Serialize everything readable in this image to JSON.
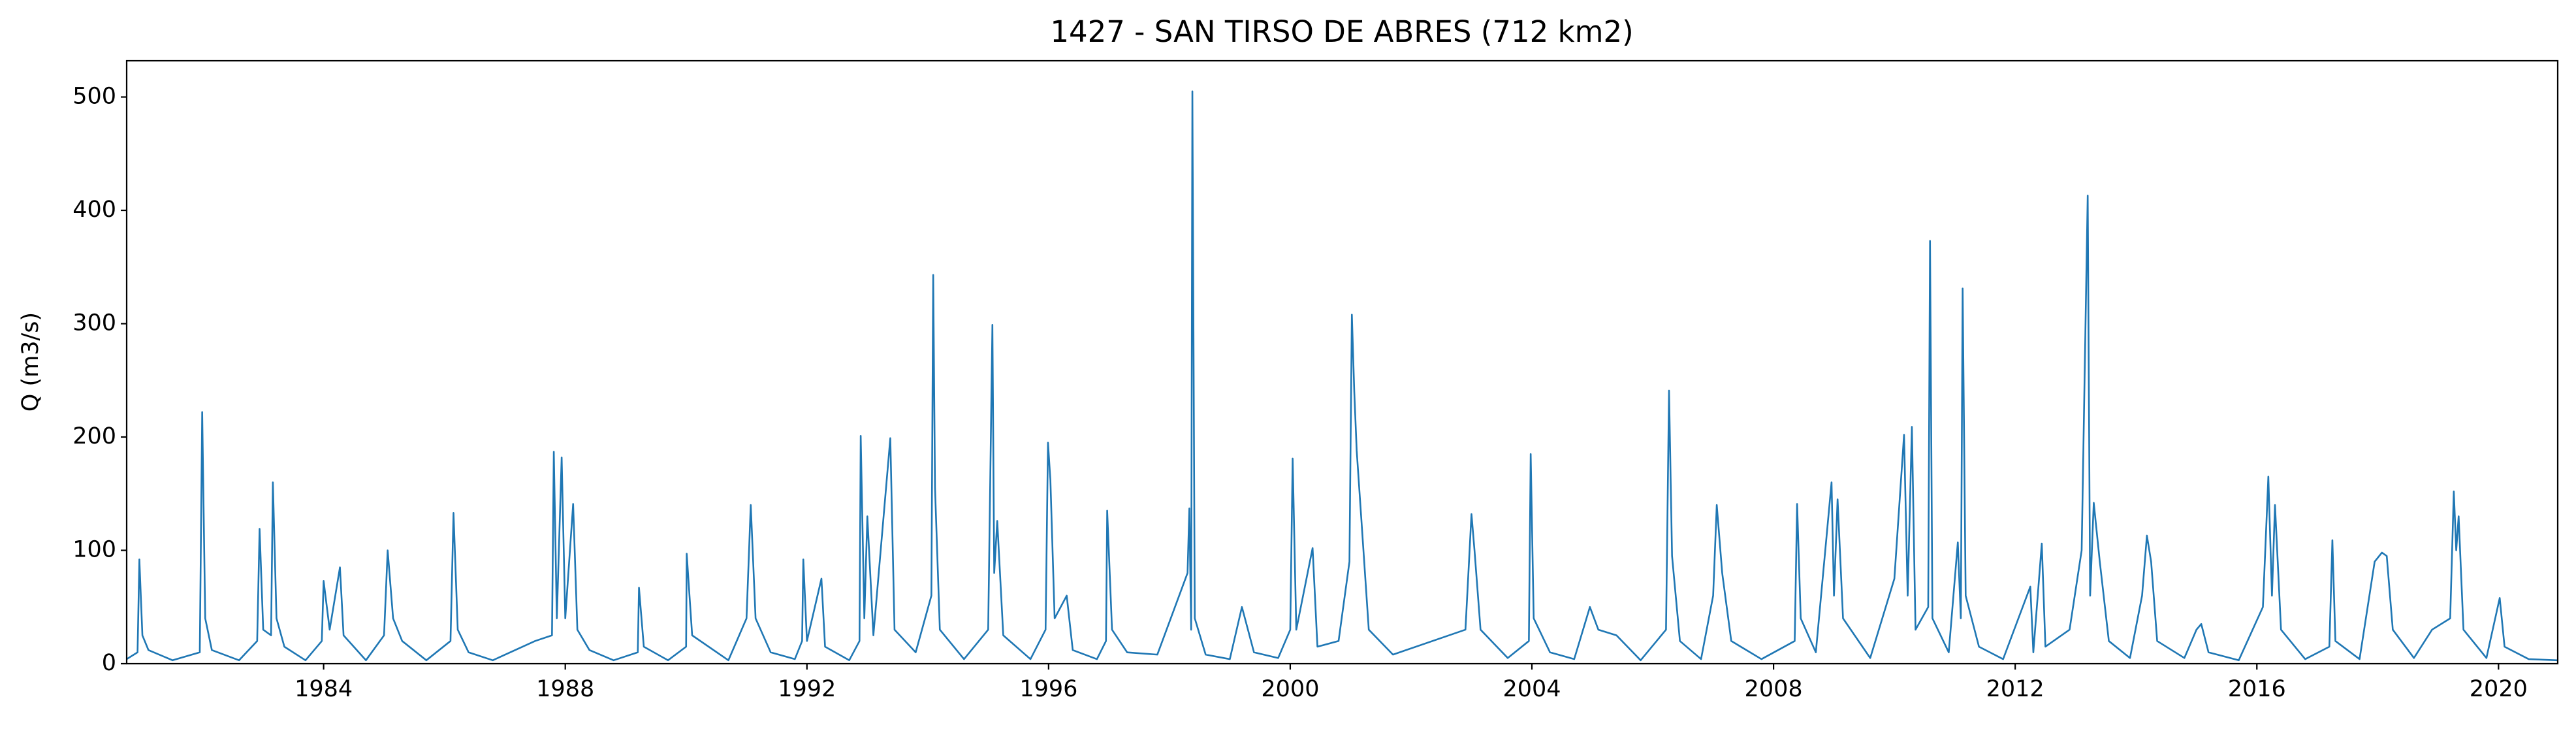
{
  "chart_data": {
    "type": "line",
    "title": "1427 - SAN TIRSO DE ABRES (712 km2)",
    "y_label": "Q (m3/s)",
    "color": "#1f77b4",
    "xlim": [
      1980.74,
      2020.98
    ],
    "xticks": [
      1984,
      1988,
      1992,
      1996,
      2000,
      2004,
      2008,
      2012,
      2016,
      2020
    ],
    "ylim": [
      0,
      532
    ],
    "yticks": [
      0,
      100,
      200,
      300,
      400,
      500
    ],
    "grid": false,
    "x": [
      1980.74,
      1980.92,
      1980.95,
      1981.0,
      1981.1,
      1981.5,
      1981.95,
      1981.99,
      1982.04,
      1982.15,
      1982.6,
      1982.9,
      1982.94,
      1983.0,
      1983.13,
      1983.16,
      1983.22,
      1983.35,
      1983.7,
      1983.97,
      1984.0,
      1984.1,
      1984.27,
      1984.33,
      1984.7,
      1985.0,
      1985.06,
      1985.15,
      1985.3,
      1985.7,
      1986.1,
      1986.15,
      1986.22,
      1986.4,
      1986.8,
      1987.5,
      1987.78,
      1987.81,
      1987.86,
      1987.94,
      1988.0,
      1988.13,
      1988.2,
      1988.4,
      1988.8,
      1989.2,
      1989.22,
      1989.3,
      1989.7,
      1990.0,
      1990.01,
      1990.1,
      1990.7,
      1991.0,
      1991.07,
      1991.15,
      1991.4,
      1991.8,
      1991.92,
      1991.94,
      1992.0,
      1992.24,
      1992.3,
      1992.7,
      1992.87,
      1992.89,
      1992.95,
      1993.0,
      1993.1,
      1993.38,
      1993.45,
      1993.8,
      1994.06,
      1994.09,
      1994.12,
      1994.2,
      1994.6,
      1995.0,
      1995.07,
      1995.1,
      1995.15,
      1995.25,
      1995.7,
      1995.95,
      1995.99,
      1996.03,
      1996.1,
      1996.3,
      1996.4,
      1996.8,
      1996.95,
      1996.97,
      1997.05,
      1997.3,
      1997.8,
      1998.3,
      1998.33,
      1998.36,
      1998.38,
      1998.42,
      1998.6,
      1999.0,
      1999.2,
      1999.4,
      1999.8,
      2000.0,
      2000.04,
      2000.1,
      2000.37,
      2000.45,
      2000.8,
      2000.98,
      2001.02,
      2001.06,
      2001.1,
      2001.18,
      2001.3,
      2001.7,
      2002.9,
      2003.0,
      2003.05,
      2003.15,
      2003.6,
      2003.95,
      2003.98,
      2004.03,
      2004.3,
      2004.7,
      2004.96,
      2005.1,
      2005.4,
      2005.8,
      2006.22,
      2006.27,
      2006.32,
      2006.45,
      2006.8,
      2007.0,
      2007.06,
      2007.15,
      2007.3,
      2007.8,
      2008.35,
      2008.39,
      2008.45,
      2008.7,
      2008.96,
      2009.0,
      2009.06,
      2009.15,
      2009.6,
      2010.0,
      2010.16,
      2010.22,
      2010.29,
      2010.35,
      2010.56,
      2010.59,
      2010.63,
      2010.9,
      2011.05,
      2011.1,
      2011.13,
      2011.18,
      2011.4,
      2011.8,
      2012.25,
      2012.3,
      2012.44,
      2012.5,
      2012.9,
      2013.1,
      2013.2,
      2013.24,
      2013.3,
      2013.4,
      2013.55,
      2013.9,
      2014.1,
      2014.18,
      2014.25,
      2014.35,
      2014.8,
      2015.0,
      2015.08,
      2015.2,
      2015.7,
      2016.1,
      2016.19,
      2016.25,
      2016.3,
      2016.4,
      2016.8,
      2017.2,
      2017.25,
      2017.3,
      2017.7,
      2017.95,
      2018.07,
      2018.15,
      2018.25,
      2018.6,
      2018.9,
      2019.2,
      2019.26,
      2019.3,
      2019.34,
      2019.42,
      2019.8,
      2020.02,
      2020.1,
      2020.5,
      2020.98
    ],
    "values": [
      4,
      10,
      92,
      25,
      12,
      3,
      10,
      222,
      40,
      12,
      3,
      20,
      119,
      30,
      25,
      160,
      40,
      15,
      3,
      20,
      73,
      30,
      85,
      25,
      3,
      25,
      100,
      40,
      20,
      3,
      20,
      133,
      30,
      10,
      3,
      20,
      25,
      187,
      40,
      182,
      40,
      141,
      30,
      12,
      3,
      10,
      67,
      15,
      3,
      15,
      97,
      25,
      3,
      40,
      140,
      40,
      10,
      4,
      20,
      92,
      20,
      75,
      15,
      3,
      20,
      201,
      40,
      130,
      25,
      199,
      30,
      10,
      60,
      343,
      155,
      30,
      4,
      30,
      299,
      80,
      126,
      25,
      4,
      30,
      195,
      162,
      40,
      60,
      12,
      4,
      20,
      135,
      30,
      10,
      8,
      80,
      137,
      30,
      505,
      40,
      8,
      4,
      50,
      10,
      5,
      30,
      181,
      30,
      102,
      15,
      20,
      90,
      308,
      240,
      188,
      125,
      30,
      8,
      30,
      132,
      100,
      30,
      5,
      20,
      185,
      40,
      10,
      4,
      50,
      30,
      25,
      3,
      30,
      241,
      95,
      20,
      4,
      60,
      140,
      80,
      20,
      4,
      20,
      141,
      40,
      10,
      160,
      60,
      145,
      40,
      5,
      75,
      202,
      60,
      209,
      30,
      50,
      373,
      40,
      10,
      107,
      40,
      331,
      60,
      15,
      4,
      68,
      10,
      106,
      15,
      30,
      100,
      413,
      60,
      142,
      90,
      20,
      5,
      60,
      113,
      90,
      20,
      5,
      30,
      35,
      10,
      3,
      50,
      165,
      60,
      140,
      30,
      4,
      15,
      109,
      20,
      4,
      90,
      98,
      95,
      30,
      5,
      30,
      40,
      152,
      100,
      130,
      30,
      5,
      58,
      15,
      4,
      3
    ]
  }
}
